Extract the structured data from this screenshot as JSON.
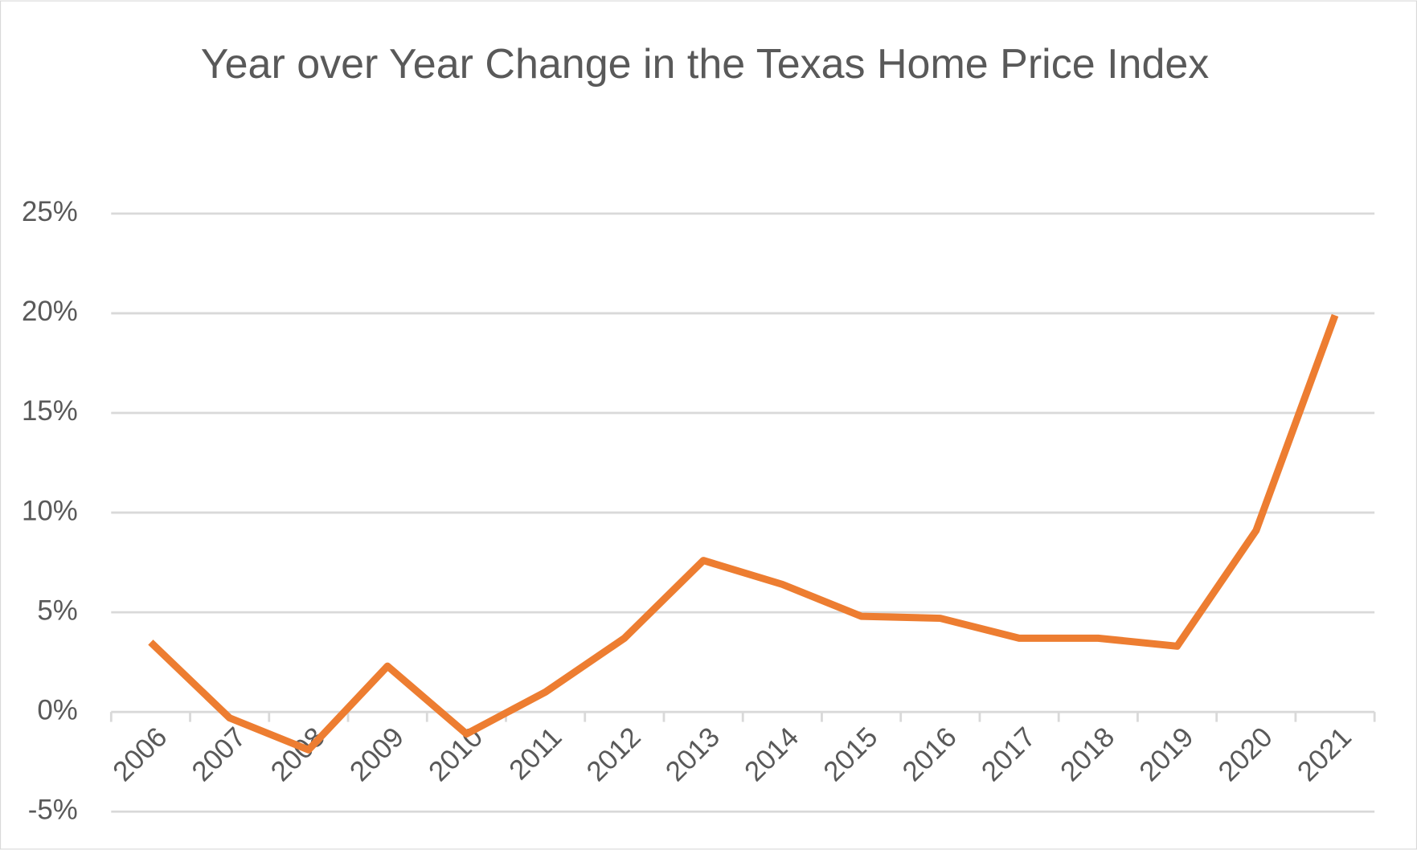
{
  "chart_data": {
    "type": "line",
    "title": "Year over Year Change in the Texas Home Price Index",
    "categories": [
      "2006",
      "2007",
      "2008",
      "2009",
      "2010",
      "2011",
      "2012",
      "2013",
      "2014",
      "2015",
      "2016",
      "2017",
      "2018",
      "2019",
      "2020",
      "2021"
    ],
    "series": [
      {
        "name": "Year over Year Change",
        "color": "#ed7d31",
        "values": [
          3.5,
          -0.3,
          -1.9,
          2.3,
          -1.1,
          1.0,
          3.7,
          7.6,
          6.4,
          4.8,
          4.7,
          3.7,
          3.7,
          3.3,
          9.1,
          19.9
        ]
      }
    ],
    "ylim": [
      -5,
      25
    ],
    "yticks": [
      {
        "value": -5,
        "label": "-5%"
      },
      {
        "value": 0,
        "label": "0%"
      },
      {
        "value": 5,
        "label": "5%"
      },
      {
        "value": 10,
        "label": "10%"
      },
      {
        "value": 15,
        "label": "15%"
      },
      {
        "value": 20,
        "label": "20%"
      },
      {
        "value": 25,
        "label": "25%"
      }
    ],
    "grid": true
  }
}
